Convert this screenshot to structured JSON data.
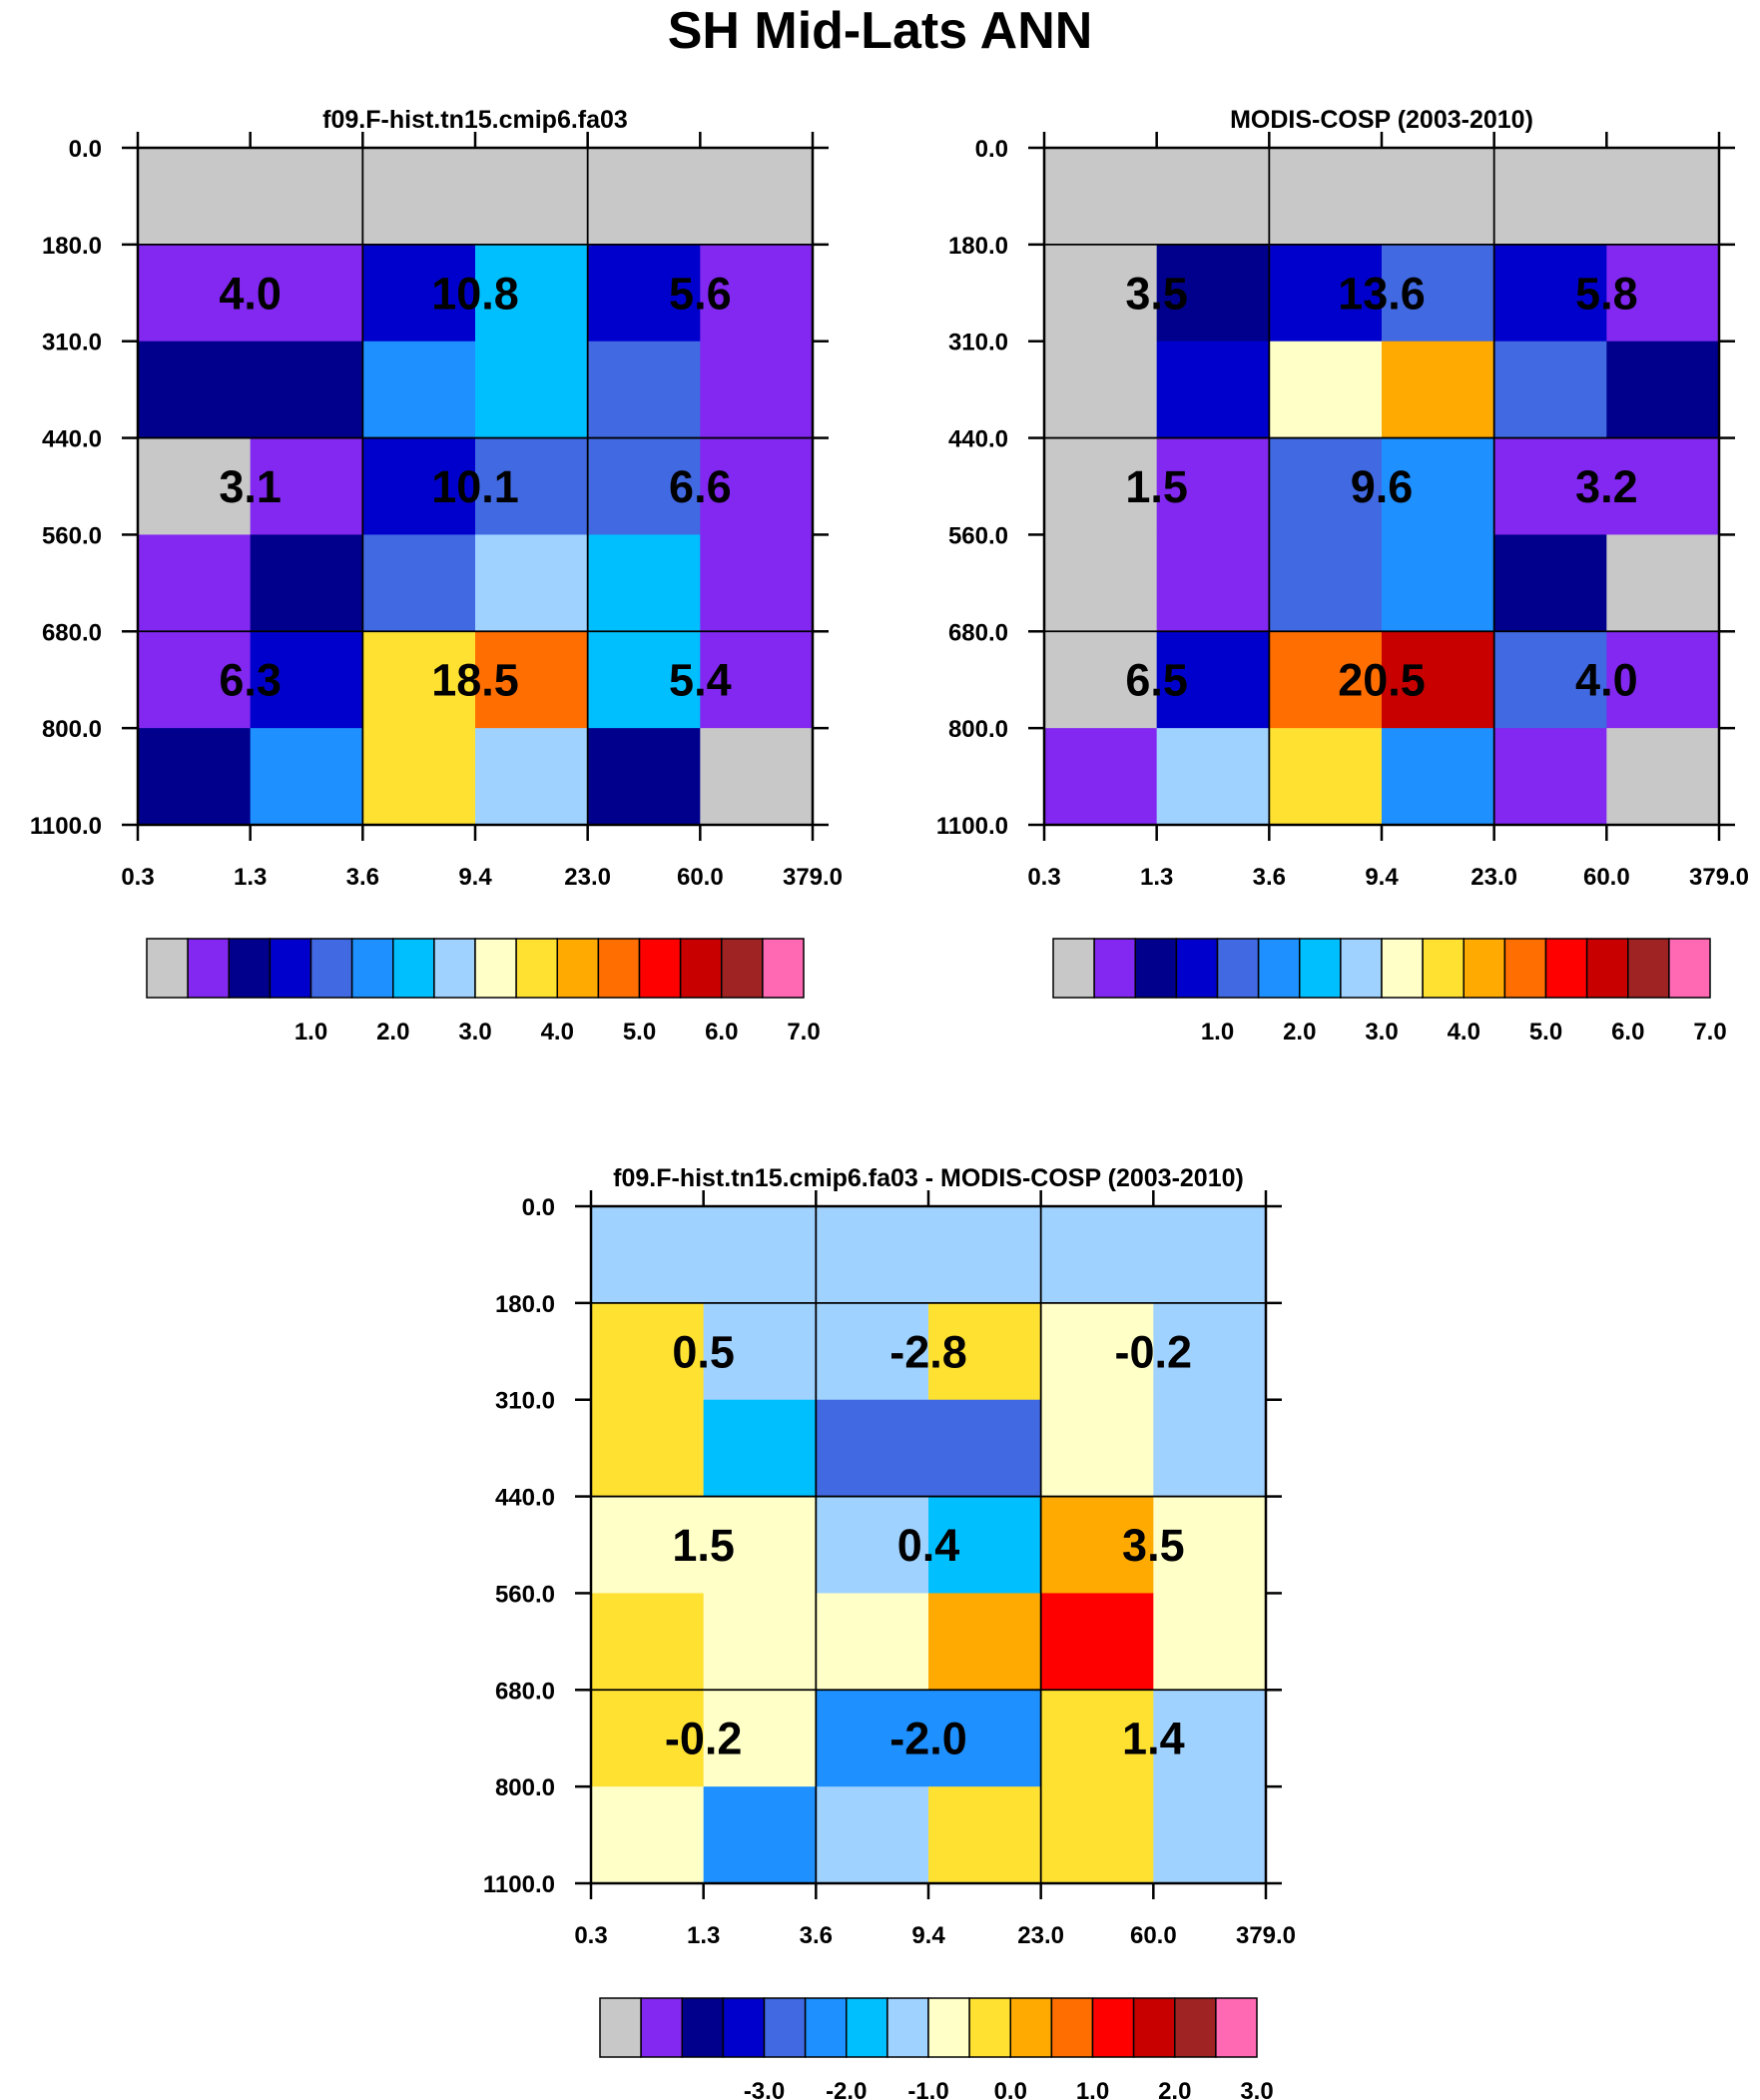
{
  "title": "SH Mid-Lats ANN",
  "y_ticks": [
    "0.0",
    "180.0",
    "310.0",
    "440.0",
    "560.0",
    "680.0",
    "800.0",
    "1100.0"
  ],
  "x_ticks": [
    "0.3",
    "1.3",
    "3.6",
    "9.4",
    "23.0",
    "60.0",
    "379.0"
  ],
  "palette": [
    "#c8c8c8",
    "#8228f0",
    "#00008c",
    "#0000cd",
    "#4169e1",
    "#1e90ff",
    "#00bfff",
    "#a0d2ff",
    "#ffffc8",
    "#ffe132",
    "#ffaa00",
    "#ff6e00",
    "#ff0000",
    "#c80000",
    "#a02323",
    "#ff69b4"
  ],
  "chart_data": [
    {
      "type": "heatmap",
      "title": "f09.F-hist.tn15.cmip6.fa03",
      "colorbar_labels": [
        "1.0",
        "2.0",
        "3.0",
        "4.0",
        "5.0",
        "6.0",
        "7.0"
      ],
      "cell_color_index": [
        [
          0,
          0,
          0,
          0,
          0,
          0
        ],
        [
          1,
          1,
          3,
          6,
          3,
          1
        ],
        [
          2,
          2,
          5,
          6,
          4,
          1
        ],
        [
          0,
          1,
          3,
          4,
          4,
          1
        ],
        [
          1,
          2,
          4,
          7,
          6,
          1
        ],
        [
          1,
          3,
          9,
          11,
          6,
          1
        ],
        [
          2,
          5,
          9,
          7,
          2,
          0
        ]
      ],
      "box_values": [
        [
          "4.0",
          "10.8",
          "5.6"
        ],
        [
          "3.1",
          "10.1",
          "6.6"
        ],
        [
          "6.3",
          "18.5",
          "5.4"
        ]
      ]
    },
    {
      "type": "heatmap",
      "title": "MODIS-COSP (2003-2010)",
      "colorbar_labels": [
        "1.0",
        "2.0",
        "3.0",
        "4.0",
        "5.0",
        "6.0",
        "7.0"
      ],
      "cell_color_index": [
        [
          0,
          0,
          0,
          0,
          0,
          0
        ],
        [
          0,
          2,
          3,
          4,
          3,
          1
        ],
        [
          0,
          3,
          8,
          10,
          4,
          2
        ],
        [
          0,
          1,
          4,
          5,
          1,
          1
        ],
        [
          0,
          1,
          4,
          5,
          2,
          0
        ],
        [
          0,
          3,
          11,
          13,
          4,
          1
        ],
        [
          1,
          7,
          9,
          5,
          1,
          0
        ]
      ],
      "box_values": [
        [
          "3.5",
          "13.6",
          "5.8"
        ],
        [
          "1.5",
          "9.6",
          "3.2"
        ],
        [
          "6.5",
          "20.5",
          "4.0"
        ]
      ]
    },
    {
      "type": "heatmap",
      "title": "f09.F-hist.tn15.cmip6.fa03 - MODIS-COSP (2003-2010)",
      "colorbar_labels": [
        "-3.0",
        "-2.0",
        "-1.0",
        "0.0",
        "1.0",
        "2.0",
        "3.0"
      ],
      "cell_color_index": [
        [
          7,
          7,
          7,
          7,
          7,
          7
        ],
        [
          9,
          7,
          7,
          9,
          8,
          7
        ],
        [
          9,
          6,
          4,
          4,
          8,
          7
        ],
        [
          8,
          8,
          7,
          6,
          10,
          8
        ],
        [
          9,
          8,
          8,
          10,
          12,
          8
        ],
        [
          9,
          8,
          5,
          5,
          9,
          7
        ],
        [
          8,
          5,
          7,
          9,
          9,
          7
        ]
      ],
      "box_values": [
        [
          "0.5",
          "-2.8",
          "-0.2"
        ],
        [
          "1.5",
          "0.4",
          "3.5"
        ],
        [
          "-0.2",
          "-2.0",
          "1.4"
        ]
      ]
    }
  ]
}
